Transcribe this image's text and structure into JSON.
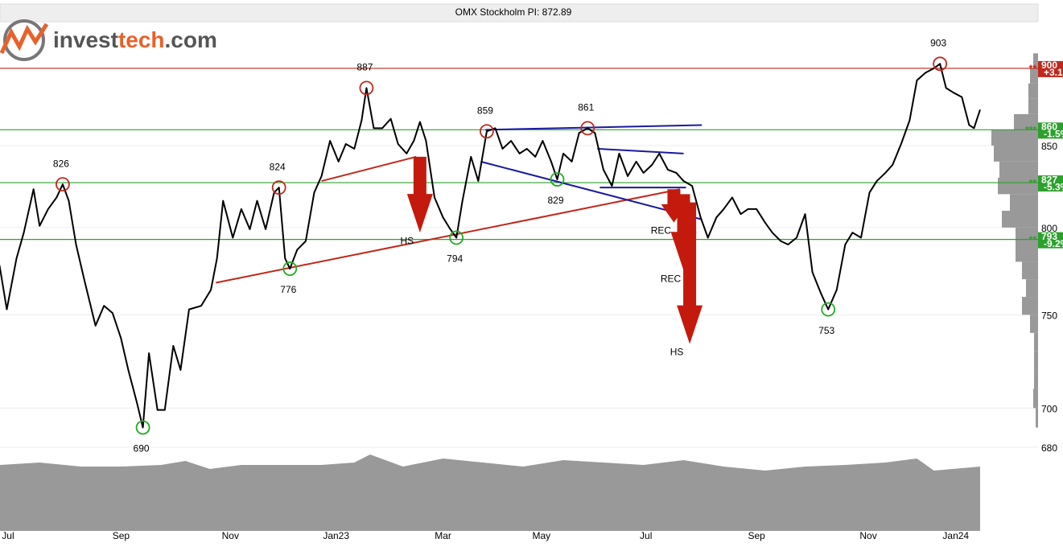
{
  "chart_data": {
    "type": "line",
    "title": "OMX Stockholm PI: 872.89",
    "logo": [
      "invest",
      "tech",
      ".com"
    ],
    "log_scale": true,
    "grid": true,
    "color": "#000000",
    "x": [
      -0.7,
      -0.1,
      0.7,
      1.3,
      2.1,
      2.6,
      3.3,
      4.0,
      4.5,
      5.0,
      5.6,
      6.3,
      7.2,
      7.9,
      8.6,
      9.3,
      9.9,
      10.6,
      11.1,
      11.6,
      12.3,
      12.9,
      13.6,
      14.2,
      14.9,
      15.9,
      16.7,
      17.2,
      17.7,
      18.5,
      19.2,
      19.9,
      20.5,
      21.2,
      21.9,
      22.3,
      22.8,
      23.2,
      23.8,
      24.5,
      25.2,
      25.8,
      26.5,
      27.2,
      27.8,
      28.5,
      29.1,
      29.5,
      30.1,
      30.8,
      31.5,
      32.1,
      32.8,
      33.4,
      33.9,
      34.4,
      35.1,
      35.8,
      36.4,
      36.9,
      37.4,
      38.1,
      38.7,
      39.4,
      40.1,
      40.7,
      41.4,
      42.1,
      42.7,
      43.4,
      44.0,
      44.7,
      45.2,
      45.7,
      46.4,
      47.0,
      47.7,
      48.3,
      49.0,
      49.7,
      50.3,
      51.0,
      51.7,
      52.3,
      53.0,
      53.6,
      54.3,
      55.0,
      55.6,
      56.3,
      57.0,
      57.6,
      58.3,
      58.9,
      59.6,
      60.3,
      60.9,
      61.6,
      62.3,
      62.9,
      63.6,
      64.2,
      64.9,
      65.6,
      66.2,
      66.9,
      67.5,
      68.2,
      68.9,
      69.5,
      70.2,
      70.9,
      71.5,
      72.2,
      72.8,
      73.5,
      74.2,
      74.8,
      75.5,
      76.2,
      76.7,
      77.2,
      77.8,
      78.5,
      79.1,
      79.5,
      80.0
    ],
    "values": [
      778,
      753,
      782,
      797,
      823,
      801,
      811,
      818,
      826,
      816,
      790,
      769,
      744,
      755,
      751,
      737,
      720,
      703,
      690,
      729,
      699,
      699,
      733,
      720,
      753,
      755,
      764,
      782,
      816,
      794,
      811,
      799,
      816,
      799,
      821,
      824,
      782,
      776,
      787,
      792,
      821,
      831,
      853,
      840,
      851,
      848,
      866,
      887,
      861,
      861,
      867,
      851,
      845,
      853,
      865,
      853,
      818,
      806,
      799,
      794,
      816,
      843,
      828,
      859,
      861,
      848,
      853,
      845,
      848,
      843,
      853,
      840,
      829,
      845,
      840,
      858,
      861,
      858,
      835,
      825,
      845,
      831,
      840,
      833,
      838,
      845,
      835,
      833,
      828,
      825,
      806,
      794,
      806,
      811,
      818,
      808,
      811,
      811,
      803,
      797,
      792,
      790,
      794,
      808,
      774,
      762,
      753,
      764,
      790,
      797,
      794,
      821,
      828,
      833,
      838,
      851,
      866,
      892,
      897,
      900,
      903,
      887,
      884,
      881,
      863,
      861,
      872.89
    ],
    "xlim": [
      -0.66,
      84.77
    ],
    "xticks": [
      {
        "value": 0,
        "label": "Jul"
      },
      {
        "value": 9.3,
        "label": "Sep"
      },
      {
        "value": 18.3,
        "label": "Nov"
      },
      {
        "value": 27.0,
        "label": "Jan23"
      },
      {
        "value": 35.8,
        "label": "Mar"
      },
      {
        "value": 43.9,
        "label": "May"
      },
      {
        "value": 52.5,
        "label": "Jul"
      },
      {
        "value": 61.6,
        "label": "Sep"
      },
      {
        "value": 70.8,
        "label": "Nov"
      },
      {
        "value": 78.0,
        "label": "Jan24"
      }
    ],
    "ylim": [
      680,
      931
    ],
    "yticks": [
      680,
      700,
      750,
      800,
      850
    ],
    "annotations": [
      {
        "x": 4.5,
        "value": 826,
        "color": "#c0281c"
      },
      {
        "x": 11.1,
        "value": 690,
        "color": "#22aa22"
      },
      {
        "x": 22.3,
        "value": 824,
        "color": "#c0281c"
      },
      {
        "x": 23.2,
        "value": 776,
        "color": "#22aa22"
      },
      {
        "x": 29.5,
        "value": 887,
        "color": "#c0281c"
      },
      {
        "x": 36.9,
        "value": 794,
        "color": "#22aa22"
      },
      {
        "x": 39.4,
        "value": 859,
        "color": "#c0281c"
      },
      {
        "x": 45.2,
        "value": 829,
        "color": "#22aa22"
      },
      {
        "x": 47.7,
        "value": 861,
        "color": "#c0281c"
      },
      {
        "x": 67.5,
        "value": 753,
        "color": "#22aa22"
      },
      {
        "x": 76.7,
        "value": 903,
        "color": "#c0281c"
      }
    ],
    "levels": [
      {
        "value": 900,
        "change": "+3.1%",
        "stars": "**",
        "color": "#c0281c"
      },
      {
        "value": 860,
        "change": "-1.5%",
        "stars": "***",
        "color": "#2ca02c"
      },
      {
        "value": 827,
        "change": "-5.3%",
        "stars": "**",
        "color": "#2ca02c"
      },
      {
        "value": 793,
        "change": "-9.2%",
        "stars": "**",
        "color": "#2ca02c"
      }
    ],
    "trendlines": [
      {
        "x": [
          25.8,
          33.6
        ],
        "values": [
          828,
          843
        ],
        "color": "#c0281c"
      },
      {
        "x": [
          17.1,
          55.3
        ],
        "values": [
          768,
          823
        ],
        "color": "#c0281c"
      },
      {
        "x": [
          39.3,
          57.1
        ],
        "values": [
          860,
          863
        ],
        "color": "#1a1aa0"
      },
      {
        "x": [
          38.9,
          57.0
        ],
        "values": [
          840,
          805
        ],
        "color": "#1a1aa0"
      },
      {
        "x": [
          48.5,
          55.6
        ],
        "values": [
          848,
          845
        ],
        "color": "#1a1aa0"
      },
      {
        "x": [
          48.7,
          55.8
        ],
        "values": [
          824,
          824
        ],
        "color": "#1a1aa0"
      }
    ],
    "patterns": [
      {
        "label": "HS",
        "x": 33.9,
        "from": 843,
        "to": 797
      },
      {
        "label": "REC",
        "x": 54.8,
        "from": 823,
        "to": 803
      },
      {
        "label": "REC",
        "x": 55.6,
        "from": 820,
        "to": 775
      },
      {
        "label": "HS",
        "x": 56.1,
        "from": 815,
        "to": 734
      }
    ],
    "arrow_color": "#c41a0e",
    "volume": {
      "color": "#999999",
      "vlim": [
        0,
        100
      ],
      "x": [
        -0.7,
        2.6,
        6.0,
        9.3,
        12.6,
        14.6,
        16.6,
        19.2,
        22.5,
        25.8,
        28.5,
        29.8,
        32.5,
        35.8,
        39.1,
        42.4,
        45.7,
        49.0,
        52.3,
        55.6,
        58.9,
        62.3,
        65.6,
        68.9,
        72.2,
        74.8,
        76.2,
        80.0
      ],
      "values": [
        82,
        85,
        80,
        80,
        82,
        87,
        77,
        82,
        82,
        82,
        85,
        95,
        80,
        90,
        85,
        80,
        88,
        85,
        82,
        88,
        80,
        75,
        80,
        82,
        85,
        90,
        75,
        80
      ]
    },
    "volume_profile": {
      "color": "#999999",
      "bins": [
        690,
        700,
        710,
        720,
        730,
        740,
        750,
        760,
        770,
        780,
        790,
        800,
        810,
        820,
        830,
        840,
        850,
        860,
        870,
        880,
        890,
        900,
        910
      ],
      "counts": [
        3,
        6,
        5,
        5,
        5,
        10,
        20,
        15,
        20,
        28,
        28,
        45,
        35,
        50,
        48,
        55,
        58,
        30,
        12,
        12,
        10,
        6
      ]
    }
  }
}
